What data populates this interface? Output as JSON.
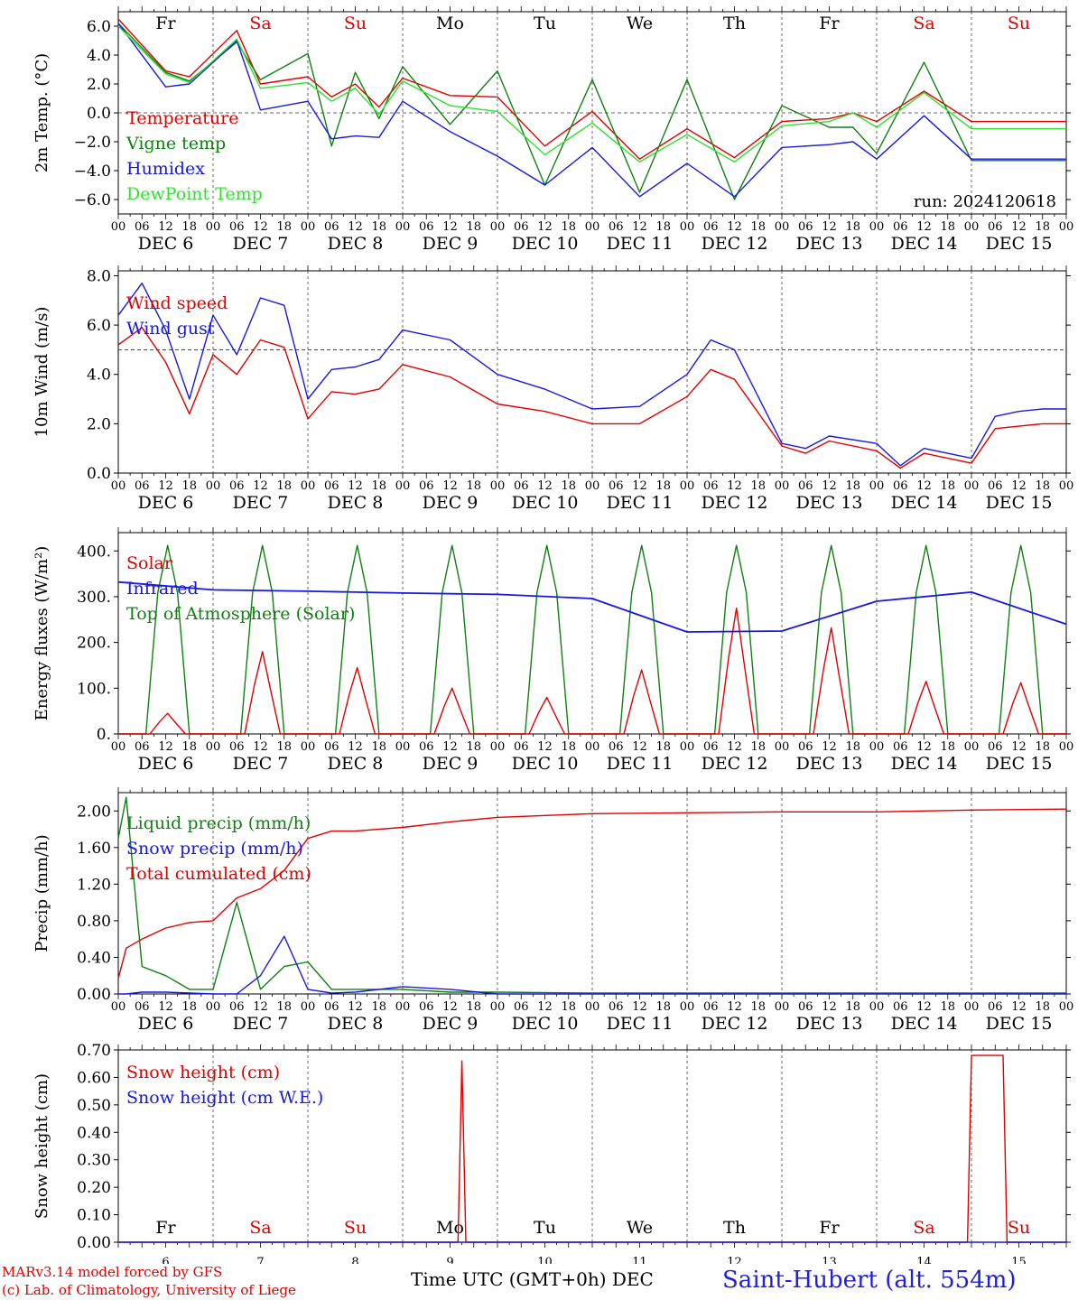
{
  "footer": {
    "credit_line1": "MARv3.14 model forced by GFS",
    "credit_line2": "(c) Lab. of Climatology, University of Liege",
    "x_axis_title": "Time UTC (GMT+0h)",
    "x_axis_unit": "DEC",
    "station": "Saint-Hubert (alt. 554m)"
  },
  "days": [
    {
      "dow": "Fr",
      "date": "DEC  6",
      "num": "6",
      "weekend": false
    },
    {
      "dow": "Sa",
      "date": "DEC  7",
      "num": "7",
      "weekend": true
    },
    {
      "dow": "Su",
      "date": "DEC  8",
      "num": "8",
      "weekend": true
    },
    {
      "dow": "Mo",
      "date": "DEC  9",
      "num": "9",
      "weekend": false
    },
    {
      "dow": "Tu",
      "date": "DEC 10",
      "num": "10",
      "weekend": false
    },
    {
      "dow": "We",
      "date": "DEC 11",
      "num": "11",
      "weekend": false
    },
    {
      "dow": "Th",
      "date": "DEC 12",
      "num": "12",
      "weekend": false
    },
    {
      "dow": "Fr",
      "date": "DEC 13",
      "num": "13",
      "weekend": false
    },
    {
      "dow": "Sa",
      "date": "DEC 14",
      "num": "14",
      "weekend": true
    },
    {
      "dow": "Su",
      "date": "DEC 15",
      "num": "15",
      "weekend": true
    }
  ],
  "hour_ticks": [
    "00",
    "06",
    "12",
    "18"
  ],
  "colors": {
    "weekday": "#000000",
    "weekend": "#e00000",
    "red": "#e00000",
    "green": "#108010",
    "blue": "#1818e0",
    "lightgreen": "#30e030"
  },
  "chart_data": [
    {
      "type": "line",
      "ylabel": "2m Temp. (°C)",
      "ylim": [
        -7,
        7
      ],
      "yticks": [
        "6.0",
        "4.0",
        "2.0",
        "0.0",
        "−2.0",
        "−4.0",
        "−6.0"
      ],
      "yticks_values": [
        6,
        4,
        2,
        0,
        -2,
        -4,
        -6
      ],
      "ref_line": 0,
      "annotation": "run: 2024120618",
      "show_dow": true,
      "x_hours": [
        0,
        12,
        18,
        30,
        36,
        48,
        54,
        60,
        66,
        72,
        84,
        96,
        108,
        120,
        132,
        144,
        156,
        168,
        180,
        186,
        192,
        204,
        216,
        222,
        228,
        234,
        240
      ],
      "series": [
        {
          "name": "Temperature",
          "color": "red",
          "values": [
            6.5,
            2.9,
            2.5,
            5.7,
            2.0,
            2.5,
            1.1,
            2.0,
            0.4,
            2.4,
            1.2,
            1.1,
            -2.3,
            0.1,
            -3.2,
            -1.1,
            -3.1,
            -0.6,
            -0.4,
            0.0,
            -0.6,
            1.5,
            -0.6,
            -0.6,
            -0.6,
            -0.6,
            -0.6
          ]
        },
        {
          "name": "Vigne temp",
          "color": "green",
          "values": [
            6.2,
            2.8,
            2.2,
            4.9,
            2.3,
            4.1,
            -2.3,
            2.8,
            -0.4,
            3.2,
            -0.8,
            2.9,
            -5.0,
            2.3,
            -5.5,
            2.3,
            -6.0,
            0.5,
            -1.0,
            -1.0,
            -2.8,
            3.5,
            -3.3,
            -3.3,
            -3.3,
            -3.3,
            -3.3
          ]
        },
        {
          "name": "Humidex",
          "color": "blue",
          "values": [
            6.2,
            1.8,
            2.0,
            5.0,
            0.2,
            0.8,
            -1.8,
            -1.6,
            -1.7,
            0.8,
            -1.3,
            -3.0,
            -5.0,
            -2.4,
            -5.8,
            -3.5,
            -5.8,
            -2.4,
            -2.2,
            -2.0,
            -3.2,
            -0.2,
            -3.2,
            -3.2,
            -3.2,
            -3.2,
            -3.2
          ]
        },
        {
          "name": "DewPoint Temp",
          "color": "lightgreen",
          "values": [
            6.0,
            2.7,
            2.1,
            5.1,
            1.7,
            2.1,
            0.8,
            1.7,
            -0.1,
            2.2,
            0.5,
            0.1,
            -2.9,
            -0.7,
            -3.4,
            -1.5,
            -3.4,
            -0.9,
            -0.6,
            0.0,
            -1.0,
            1.4,
            -1.1,
            -1.1,
            -1.1,
            -1.1,
            -1.1
          ]
        }
      ]
    },
    {
      "type": "line",
      "ylabel": "10m Wind (m/s)",
      "ylim": [
        0,
        8.2
      ],
      "yticks": [
        "8.0",
        "6.0",
        "4.0",
        "2.0",
        "0.0"
      ],
      "yticks_values": [
        8,
        6,
        4,
        2,
        0
      ],
      "ref_line": 5,
      "show_dow": false,
      "x_hours": [
        0,
        6,
        12,
        18,
        24,
        30,
        36,
        42,
        48,
        54,
        60,
        66,
        72,
        84,
        96,
        108,
        120,
        132,
        144,
        150,
        156,
        168,
        174,
        180,
        192,
        198,
        204,
        216,
        222,
        228,
        234,
        240
      ],
      "series": [
        {
          "name": "Wind speed",
          "color": "red",
          "values": [
            5.2,
            5.9,
            4.5,
            2.4,
            4.8,
            4.0,
            5.4,
            5.1,
            2.2,
            3.3,
            3.2,
            3.4,
            4.4,
            3.9,
            2.8,
            2.5,
            2.0,
            2.0,
            3.1,
            4.2,
            3.8,
            1.1,
            0.8,
            1.3,
            0.9,
            0.2,
            0.8,
            0.4,
            1.8,
            1.9,
            2.0,
            2.0
          ]
        },
        {
          "name": "Wind gust",
          "color": "blue",
          "values": [
            6.4,
            7.7,
            5.8,
            3.0,
            6.4,
            4.8,
            7.1,
            6.8,
            3.0,
            4.2,
            4.3,
            4.6,
            5.8,
            5.4,
            4.0,
            3.4,
            2.6,
            2.7,
            4.0,
            5.4,
            5.0,
            1.2,
            1.0,
            1.5,
            1.2,
            0.3,
            1.0,
            0.6,
            2.3,
            2.5,
            2.6,
            2.6
          ]
        }
      ]
    },
    {
      "type": "line",
      "ylabel": "Energy fluxes (W/m²)",
      "ylim": [
        0,
        440
      ],
      "yticks": [
        "400.",
        "300.",
        "200.",
        "100.",
        "0."
      ],
      "yticks_values": [
        400,
        300,
        200,
        100,
        0
      ],
      "show_dow": false,
      "x_hours": [
        0,
        24,
        48,
        72,
        96,
        120,
        144,
        168,
        192,
        216,
        240
      ],
      "solar_peaks": [
        45,
        180,
        145,
        100,
        80,
        140,
        275,
        232,
        115,
        112
      ],
      "toa_peak": 412,
      "infrared": [
        332,
        315,
        312,
        308,
        305,
        296,
        223,
        225,
        290,
        310,
        240
      ]
    },
    {
      "type": "line",
      "ylabel": "Precip (mm/h)",
      "ylim": [
        0,
        2.2
      ],
      "yticks": [
        "2.00",
        "1.60",
        "1.20",
        "0.80",
        "0.40",
        "0.00"
      ],
      "yticks_values": [
        2.0,
        1.6,
        1.2,
        0.8,
        0.4,
        0.0
      ],
      "show_dow": false,
      "x_hours": [
        0,
        2,
        6,
        12,
        18,
        24,
        30,
        36,
        42,
        48,
        54,
        60,
        72,
        84,
        96,
        120,
        144,
        168,
        192,
        216,
        240
      ],
      "series": [
        {
          "name": "Liquid precip (mm/h)",
          "color": "green",
          "values": [
            1.7,
            2.15,
            0.3,
            0.2,
            0.05,
            0.05,
            1.0,
            0.05,
            0.3,
            0.35,
            0.05,
            0.05,
            0.05,
            0.02,
            0.02,
            0.01,
            0.01,
            0.01,
            0.01,
            0.01,
            0.01
          ]
        },
        {
          "name": "Snow precip (mm/h)",
          "color": "blue",
          "values": [
            0.0,
            0.0,
            0.02,
            0.02,
            0.01,
            0.0,
            0.0,
            0.2,
            0.63,
            0.05,
            0.01,
            0.02,
            0.08,
            0.05,
            0.0,
            0.0,
            0.0,
            0.0,
            0.0,
            0.0,
            0.0
          ]
        },
        {
          "name": "Total cumulated (cm)",
          "color": "red",
          "values": [
            0.17,
            0.5,
            0.6,
            0.72,
            0.78,
            0.8,
            1.05,
            1.15,
            1.35,
            1.7,
            1.78,
            1.78,
            1.82,
            1.88,
            1.93,
            1.97,
            1.98,
            1.99,
            1.99,
            2.01,
            2.02
          ]
        }
      ]
    },
    {
      "type": "line",
      "ylabel": "Snow height (cm)",
      "ylim": [
        0,
        0.7
      ],
      "yticks": [
        "0.70",
        "0.60",
        "0.50",
        "0.40",
        "0.30",
        "0.20",
        "0.10",
        "0.00"
      ],
      "yticks_values": [
        0.7,
        0.6,
        0.5,
        0.4,
        0.3,
        0.2,
        0.1,
        0.0
      ],
      "show_dow": true,
      "series": [
        {
          "name": "Snow height (cm)",
          "color": "red",
          "x_hours": [
            0,
            86,
            87,
            88,
            215,
            216,
            224,
            225,
            240
          ],
          "values": [
            0,
            0,
            0.66,
            0,
            0,
            0.68,
            0.68,
            0,
            0
          ]
        },
        {
          "name": "Snow height (cm W.E.)",
          "color": "blue",
          "x_hours": [
            0,
            240
          ],
          "values": [
            0,
            0
          ]
        }
      ]
    }
  ]
}
